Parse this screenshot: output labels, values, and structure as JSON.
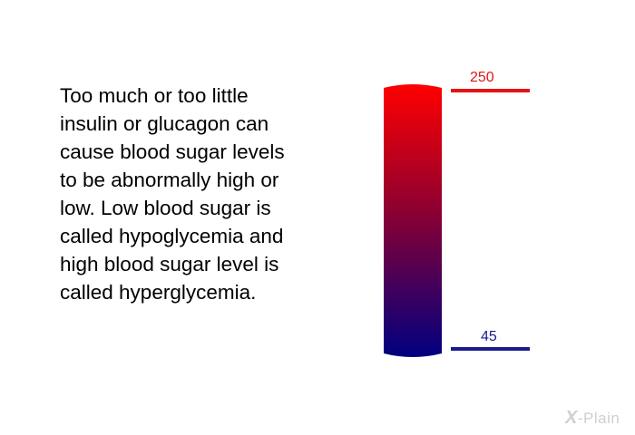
{
  "text": {
    "body": "Too much or too little\ninsulin or glucagon can\ncause blood sugar levels\nto be abnormally high or\nlow. Low blood sugar is\ncalled hypoglycemia and\nhigh blood sugar level is\ncalled hyperglycemia."
  },
  "gauge": {
    "high_label": "250",
    "low_label": "45",
    "colors": {
      "top": "#ff0000",
      "bottom": "#000080",
      "high_line": "#e41414",
      "low_line": "#1a1a8c"
    }
  },
  "logo": {
    "mark": "X",
    "text": "-Plain"
  }
}
